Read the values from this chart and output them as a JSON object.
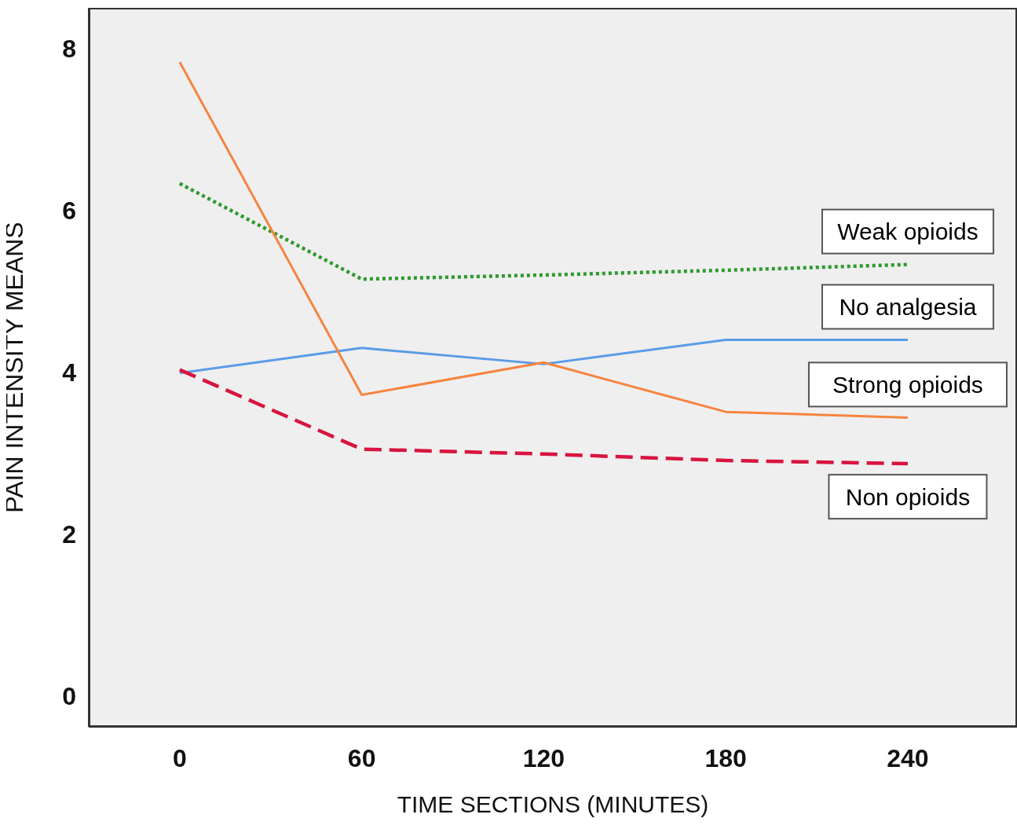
{
  "chart_data": {
    "type": "line",
    "xlabel": "TIME SECTIONS (MINUTES)",
    "ylabel": "PAIN INTENSITY MEANS",
    "x": [
      0,
      60,
      120,
      180,
      240
    ],
    "series": [
      {
        "name": "Weak opioids",
        "color": "#2e9a2e",
        "line_style": "dotted",
        "values": [
          6.33,
          5.15,
          5.2,
          5.26,
          5.33
        ]
      },
      {
        "name": "No analgesia",
        "color": "#5b9be8",
        "line_style": "solid",
        "values": [
          3.99,
          4.3,
          4.1,
          4.4,
          4.4
        ]
      },
      {
        "name": "Strong opioids",
        "color": "#f7843f",
        "line_style": "solid",
        "values": [
          7.83,
          3.72,
          4.12,
          3.51,
          3.44
        ]
      },
      {
        "name": "Non opioids",
        "color": "#d8143f",
        "line_style": "dashed",
        "values": [
          4.03,
          3.05,
          2.99,
          2.91,
          2.87
        ]
      }
    ],
    "xlim": [
      -30,
      276
    ],
    "ylim": [
      -0.38,
      8.5
    ],
    "xticks": [
      0,
      60,
      120,
      180,
      240
    ],
    "yticks": [
      0,
      2,
      4,
      6,
      8
    ],
    "grid": false,
    "legend": false,
    "marker": "none"
  }
}
